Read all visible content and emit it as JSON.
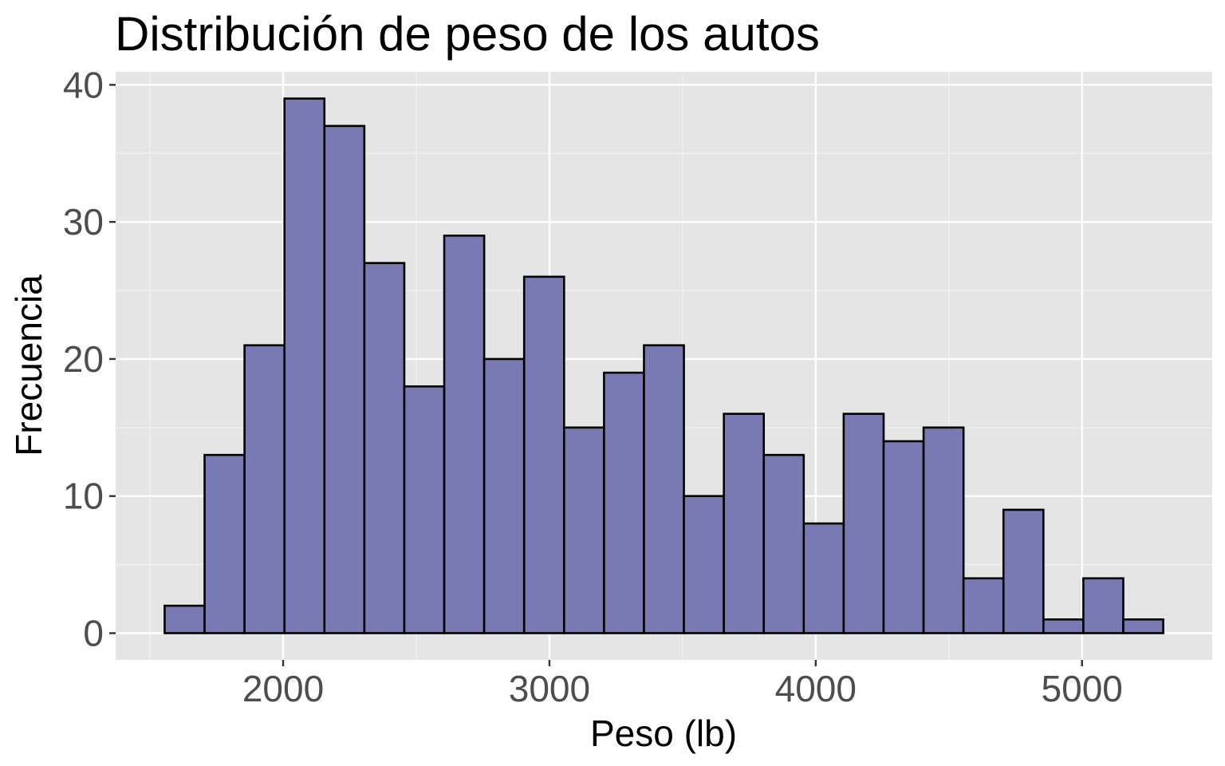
{
  "chart_data": {
    "type": "bar",
    "subtype": "histogram",
    "title": "Distribución de peso de los autos",
    "xlabel": "Peso (lb)",
    "ylabel": "Frecuencia",
    "bin_width": 150,
    "bins": [
      {
        "start": 1555,
        "end": 1705,
        "count": 2
      },
      {
        "start": 1705,
        "end": 1855,
        "count": 13
      },
      {
        "start": 1855,
        "end": 2005,
        "count": 21
      },
      {
        "start": 2005,
        "end": 2155,
        "count": 39
      },
      {
        "start": 2155,
        "end": 2305,
        "count": 37
      },
      {
        "start": 2305,
        "end": 2455,
        "count": 27
      },
      {
        "start": 2455,
        "end": 2605,
        "count": 18
      },
      {
        "start": 2605,
        "end": 2755,
        "count": 29
      },
      {
        "start": 2755,
        "end": 2905,
        "count": 20
      },
      {
        "start": 2905,
        "end": 3055,
        "count": 26
      },
      {
        "start": 3055,
        "end": 3205,
        "count": 15
      },
      {
        "start": 3205,
        "end": 3355,
        "count": 19
      },
      {
        "start": 3355,
        "end": 3505,
        "count": 21
      },
      {
        "start": 3505,
        "end": 3655,
        "count": 10
      },
      {
        "start": 3655,
        "end": 3805,
        "count": 16
      },
      {
        "start": 3805,
        "end": 3955,
        "count": 13
      },
      {
        "start": 3955,
        "end": 4105,
        "count": 8
      },
      {
        "start": 4105,
        "end": 4255,
        "count": 16
      },
      {
        "start": 4255,
        "end": 4405,
        "count": 14
      },
      {
        "start": 4405,
        "end": 4555,
        "count": 15
      },
      {
        "start": 4555,
        "end": 4705,
        "count": 4
      },
      {
        "start": 4705,
        "end": 4855,
        "count": 9
      },
      {
        "start": 4855,
        "end": 5005,
        "count": 1
      },
      {
        "start": 5005,
        "end": 5155,
        "count": 4
      },
      {
        "start": 5155,
        "end": 5305,
        "count": 1
      }
    ],
    "xlim": [
      1371,
      5489
    ],
    "ylim": [
      -1.95,
      40.95
    ],
    "x_major_ticks": [
      2000,
      3000,
      4000,
      5000
    ],
    "x_tick_labels": [
      "2000",
      "3000",
      "4000",
      "5000"
    ],
    "x_minor_ticks": [
      1500,
      2500,
      3500,
      4500
    ],
    "y_major_ticks": [
      0,
      10,
      20,
      30,
      40
    ],
    "y_tick_labels": [
      "0",
      "10",
      "20",
      "30",
      "40"
    ],
    "y_minor_ticks": [
      5,
      15,
      25,
      35
    ],
    "grid": true,
    "colors": {
      "bar_fill": "#7575b2",
      "bar_outline": "#000000",
      "panel_background": "#e5e5e5",
      "grid_major": "#ffffff",
      "grid_minor": "#f2f2f2",
      "tick_color": "#333333"
    }
  }
}
